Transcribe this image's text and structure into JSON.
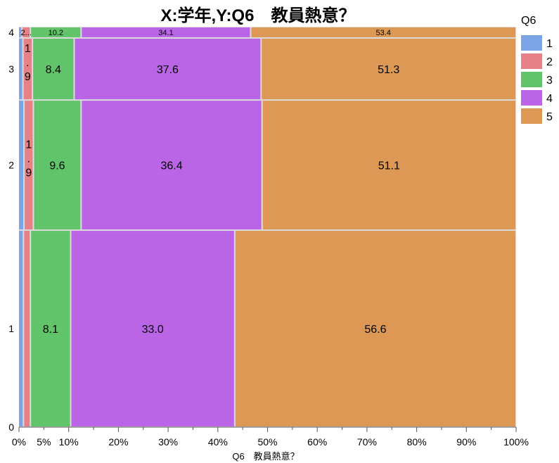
{
  "chart_data": {
    "type": "mosaic",
    "title": "X:学年,Y:Q6　教員熱意？",
    "xlabel": "Q6　教員熱意？",
    "ylabel": "",
    "x_ticks": [
      "0%",
      "5%",
      "10%",
      "20%",
      "30%",
      "40%",
      "50%",
      "60%",
      "70%",
      "80%",
      "90%",
      "100%"
    ],
    "y_ticks": [
      "0",
      "1",
      "2",
      "3",
      "4"
    ],
    "legend": {
      "title": "Q6",
      "items": [
        {
          "name": "1",
          "color": "#7aa4e6"
        },
        {
          "name": "2",
          "color": "#e58187"
        },
        {
          "name": "3",
          "color": "#61c46a"
        },
        {
          "name": "4",
          "color": "#b965e6"
        },
        {
          "name": "5",
          "color": "#dd9855"
        }
      ]
    },
    "rows": [
      {
        "category": "1",
        "height_fraction": 0.492,
        "values": [
          0.9,
          1.4,
          8.1,
          33.0,
          56.6
        ],
        "labels": [
          "",
          "",
          "8.1",
          "33.0",
          "56.6"
        ]
      },
      {
        "category": "2",
        "height_fraction": 0.325,
        "values": [
          1.0,
          1.9,
          9.6,
          36.4,
          51.1
        ],
        "labels": [
          "",
          "1\n.\n9",
          "9.6",
          "36.4",
          "51.1"
        ]
      },
      {
        "category": "3",
        "height_fraction": 0.155,
        "values": [
          0.8,
          1.9,
          8.4,
          37.6,
          51.3
        ],
        "labels": [
          "",
          "1\n.\n9",
          "8.4",
          "37.6",
          "51.3"
        ]
      },
      {
        "category": "4",
        "height_fraction": 0.028,
        "values": [
          0.6,
          1.7,
          10.2,
          34.1,
          53.4
        ],
        "labels": [
          "",
          "2...",
          "10.2",
          "34.1",
          "53.4"
        ]
      }
    ]
  }
}
